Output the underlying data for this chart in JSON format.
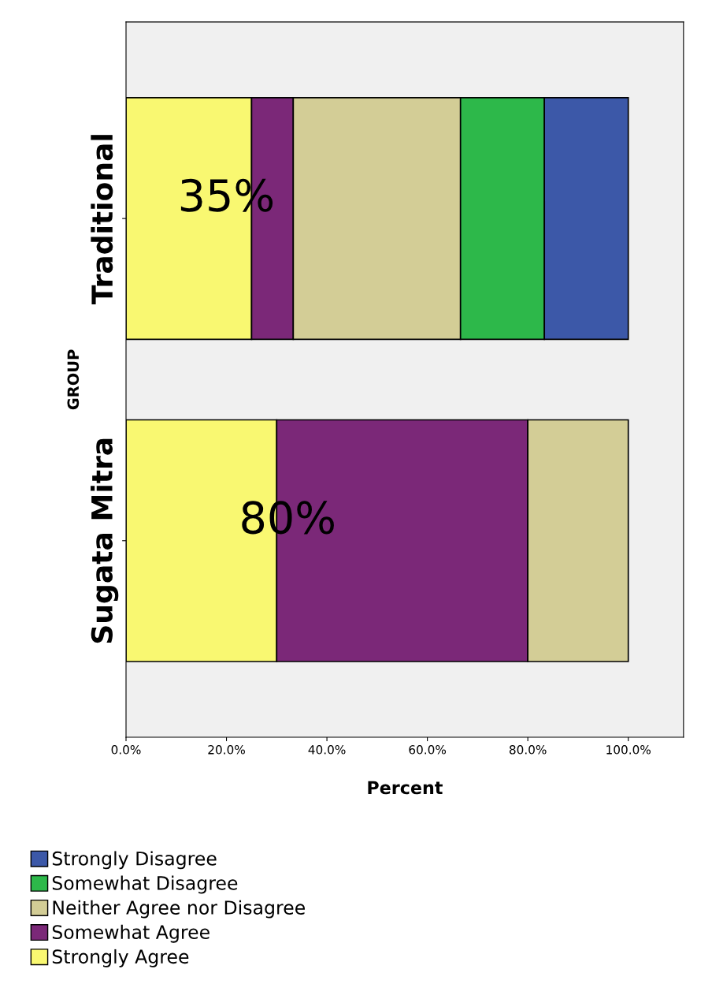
{
  "chart_data": {
    "type": "bar",
    "orientation": "horizontal",
    "stacked": true,
    "xlabel": "Percent",
    "ylabel": "GROUP",
    "categories": [
      "Traditional",
      "Sugata Mitra"
    ],
    "series": [
      {
        "name": "Strongly Agree",
        "color": "#f9f871",
        "values": [
          25,
          30
        ]
      },
      {
        "name": "Somewhat Agree",
        "color": "#7b2878",
        "values": [
          8.3,
          50
        ]
      },
      {
        "name": "Neither Agree nor Disagree",
        "color": "#d3cd96",
        "values": [
          33.3,
          20
        ]
      },
      {
        "name": "Somewhat Disagree",
        "color": "#2db84a",
        "values": [
          16.7,
          null
        ]
      },
      {
        "name": "Strongly Disagree",
        "color": "#3c58a8",
        "values": [
          16.7,
          null
        ]
      }
    ],
    "xlim": [
      0,
      111
    ],
    "xticks": [
      {
        "value": 0,
        "label": "0.0%"
      },
      {
        "value": 20,
        "label": "20.0%"
      },
      {
        "value": 40,
        "label": "40.0%"
      },
      {
        "value": 60,
        "label": "60.0%"
      },
      {
        "value": 80,
        "label": "80.0%"
      },
      {
        "value": 100,
        "label": "100.0%"
      }
    ],
    "annotations": [
      "35%",
      "80%"
    ],
    "grid": false,
    "legend": "bottom"
  }
}
